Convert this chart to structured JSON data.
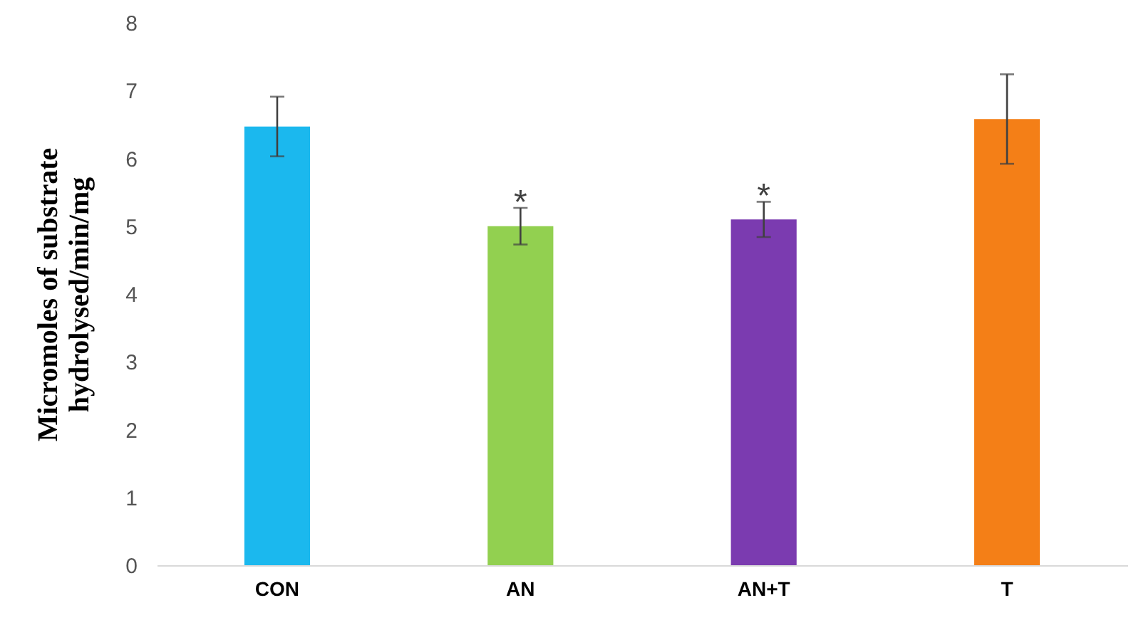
{
  "chart_data": {
    "type": "bar",
    "ylabel": "Micromoles of substrate hydrolysed/min/mg",
    "categories": [
      "CON",
      "AN",
      "AN+T",
      "T"
    ],
    "values": [
      6.47,
      5.0,
      5.1,
      6.58
    ],
    "colors": [
      "#1bb8ee",
      "#92d050",
      "#7b3bb0",
      "#f47f17"
    ],
    "errors": [
      0.44,
      0.27,
      0.26,
      0.66
    ],
    "ylim": [
      0,
      8
    ],
    "yticks": [
      0,
      1,
      2,
      3,
      4,
      5,
      6,
      7,
      8
    ],
    "grid": false,
    "annotations": [
      {
        "text": "*",
        "x": "AN",
        "y": 5.27
      },
      {
        "text": "*",
        "x": "AN+T",
        "y": 5.36
      }
    ]
  }
}
